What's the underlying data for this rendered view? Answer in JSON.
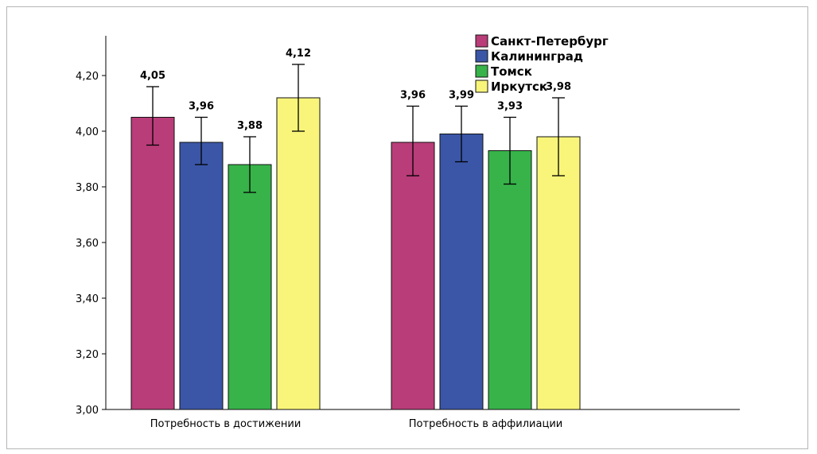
{
  "chart_data": {
    "type": "bar",
    "title": "",
    "xlabel": "",
    "ylabel": "",
    "ylim": [
      3.0,
      4.3
    ],
    "yticks": [
      "3,00",
      "3,20",
      "3,40",
      "3,60",
      "3,80",
      "4,00",
      "4,20"
    ],
    "categories": [
      "Потребность в достижении",
      "Потребность в аффилиации"
    ],
    "legend_position": "top-right",
    "grid": false,
    "series": [
      {
        "name": "Санкт-Петербург",
        "color": "#b93d79",
        "values": [
          4.05,
          3.96
        ],
        "labels": [
          "4,05",
          "3,96"
        ],
        "err_low": [
          3.95,
          3.84
        ],
        "err_high": [
          4.16,
          4.09
        ]
      },
      {
        "name": "Калининград",
        "color": "#3b56a7",
        "values": [
          3.96,
          3.99
        ],
        "labels": [
          "3,96",
          "3,99"
        ],
        "err_low": [
          3.88,
          3.89
        ],
        "err_high": [
          4.05,
          4.09
        ]
      },
      {
        "name": "Томск",
        "color": "#37b34a",
        "values": [
          3.88,
          3.93
        ],
        "labels": [
          "3,88",
          "3,93"
        ],
        "err_low": [
          3.78,
          3.81
        ],
        "err_high": [
          3.98,
          4.05
        ]
      },
      {
        "name": "Иркутск",
        "color": "#f8f57a",
        "values": [
          4.12,
          3.98
        ],
        "labels": [
          "4,12",
          "3,98"
        ],
        "err_low": [
          4.0,
          3.84
        ],
        "err_high": [
          4.24,
          4.12
        ]
      }
    ]
  }
}
